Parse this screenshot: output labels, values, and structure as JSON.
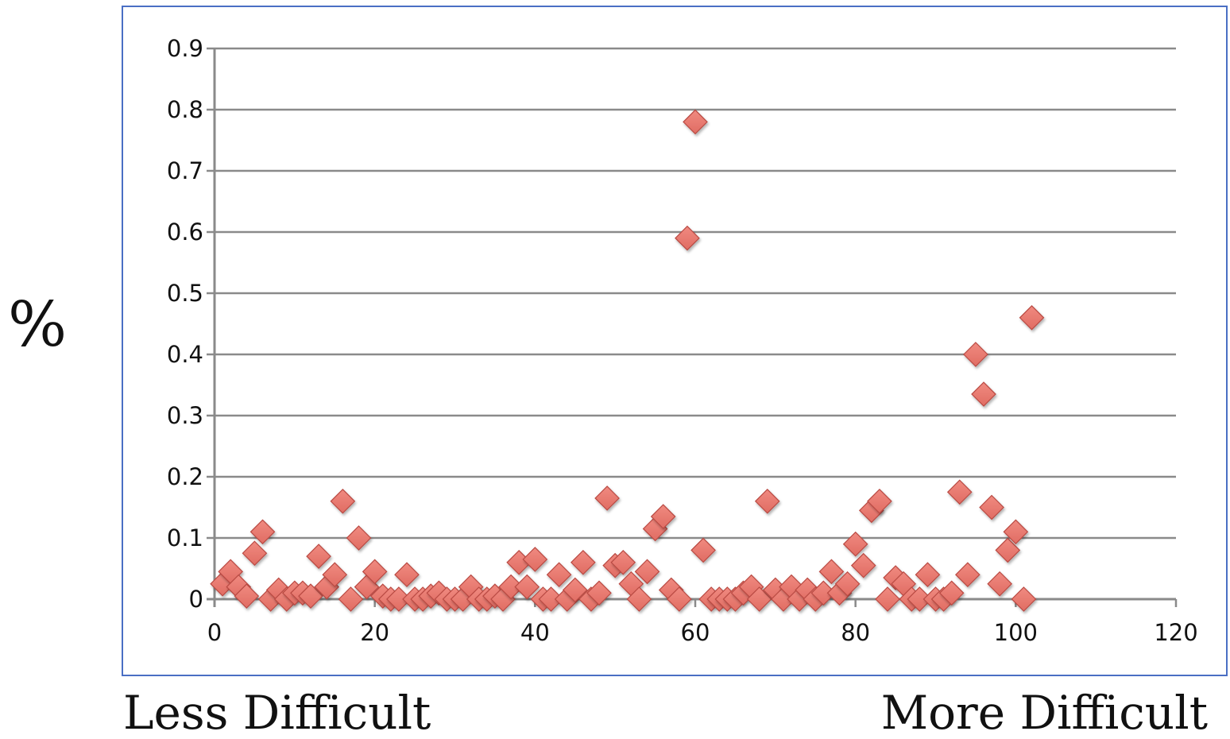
{
  "y_symbol": "%",
  "captions": {
    "left": "Less Difficult",
    "right": "More Difficult"
  },
  "colors": {
    "marker_fill": "#e06c63",
    "marker_stroke": "#b94a43",
    "grid": "#8a8a8a",
    "frame": "#4a6fc4"
  },
  "chart_data": {
    "type": "scatter",
    "title": "",
    "xlabel": "",
    "ylabel": "%",
    "xlim": [
      0,
      120
    ],
    "ylim": [
      0,
      0.9
    ],
    "x_ticks": [
      "0",
      "20",
      "40",
      "60",
      "80",
      "100",
      "120"
    ],
    "y_ticks": [
      "0",
      "0.1",
      "0.2",
      "0.3",
      "0.4",
      "0.5",
      "0.6",
      "0.7",
      "0.8",
      "0.9"
    ],
    "grid": true,
    "marker": "diamond",
    "series": [
      {
        "points": [
          [
            1,
            0.025
          ],
          [
            2,
            0.045
          ],
          [
            3,
            0.02
          ],
          [
            4,
            0.005
          ],
          [
            5,
            0.075
          ],
          [
            6,
            0.11
          ],
          [
            7,
            0.0
          ],
          [
            8,
            0.015
          ],
          [
            9,
            0.0
          ],
          [
            10,
            0.01
          ],
          [
            11,
            0.01
          ],
          [
            12,
            0.005
          ],
          [
            13,
            0.07
          ],
          [
            14,
            0.02
          ],
          [
            15,
            0.04
          ],
          [
            16,
            0.16
          ],
          [
            17,
            0.0
          ],
          [
            18,
            0.1
          ],
          [
            19,
            0.02
          ],
          [
            20,
            0.045
          ],
          [
            21,
            0.005
          ],
          [
            22,
            0.0
          ],
          [
            23,
            0.0
          ],
          [
            24,
            0.04
          ],
          [
            25,
            0.0
          ],
          [
            26,
            0.0
          ],
          [
            27,
            0.005
          ],
          [
            28,
            0.01
          ],
          [
            29,
            0.0
          ],
          [
            30,
            0.0
          ],
          [
            31,
            0.0
          ],
          [
            32,
            0.02
          ],
          [
            33,
            0.0
          ],
          [
            34,
            0.0
          ],
          [
            35,
            0.005
          ],
          [
            36,
            0.0
          ],
          [
            37,
            0.02
          ],
          [
            38,
            0.06
          ],
          [
            39,
            0.02
          ],
          [
            40,
            0.065
          ],
          [
            41,
            0.0
          ],
          [
            42,
            0.0
          ],
          [
            43,
            0.04
          ],
          [
            44,
            0.0
          ],
          [
            45,
            0.015
          ],
          [
            46,
            0.06
          ],
          [
            47,
            0.0
          ],
          [
            48,
            0.01
          ],
          [
            49,
            0.165
          ],
          [
            50,
            0.055
          ],
          [
            51,
            0.06
          ],
          [
            52,
            0.025
          ],
          [
            53,
            0.0
          ],
          [
            54,
            0.045
          ],
          [
            55,
            0.115
          ],
          [
            56,
            0.135
          ],
          [
            57,
            0.015
          ],
          [
            58,
            0.0
          ],
          [
            59,
            0.59
          ],
          [
            60,
            0.78
          ],
          [
            61,
            0.08
          ],
          [
            62,
            0.0
          ],
          [
            63,
            0.0
          ],
          [
            64,
            0.0
          ],
          [
            65,
            0.0
          ],
          [
            66,
            0.01
          ],
          [
            67,
            0.02
          ],
          [
            68,
            0.0
          ],
          [
            69,
            0.16
          ],
          [
            70,
            0.015
          ],
          [
            71,
            0.0
          ],
          [
            72,
            0.02
          ],
          [
            73,
            0.0
          ],
          [
            74,
            0.015
          ],
          [
            75,
            0.0
          ],
          [
            76,
            0.01
          ],
          [
            77,
            0.045
          ],
          [
            78,
            0.01
          ],
          [
            79,
            0.025
          ],
          [
            80,
            0.09
          ],
          [
            81,
            0.055
          ],
          [
            82,
            0.145
          ],
          [
            83,
            0.16
          ],
          [
            84,
            0.0
          ],
          [
            85,
            0.035
          ],
          [
            86,
            0.025
          ],
          [
            87,
            0.0
          ],
          [
            88,
            0.0
          ],
          [
            89,
            0.04
          ],
          [
            90,
            0.0
          ],
          [
            91,
            0.0
          ],
          [
            92,
            0.01
          ],
          [
            93,
            0.175
          ],
          [
            94,
            0.04
          ],
          [
            95,
            0.4
          ],
          [
            96,
            0.335
          ],
          [
            97,
            0.15
          ],
          [
            98,
            0.025
          ],
          [
            99,
            0.08
          ],
          [
            100,
            0.11
          ],
          [
            101,
            0.0
          ],
          [
            102,
            0.46
          ]
        ]
      }
    ]
  }
}
